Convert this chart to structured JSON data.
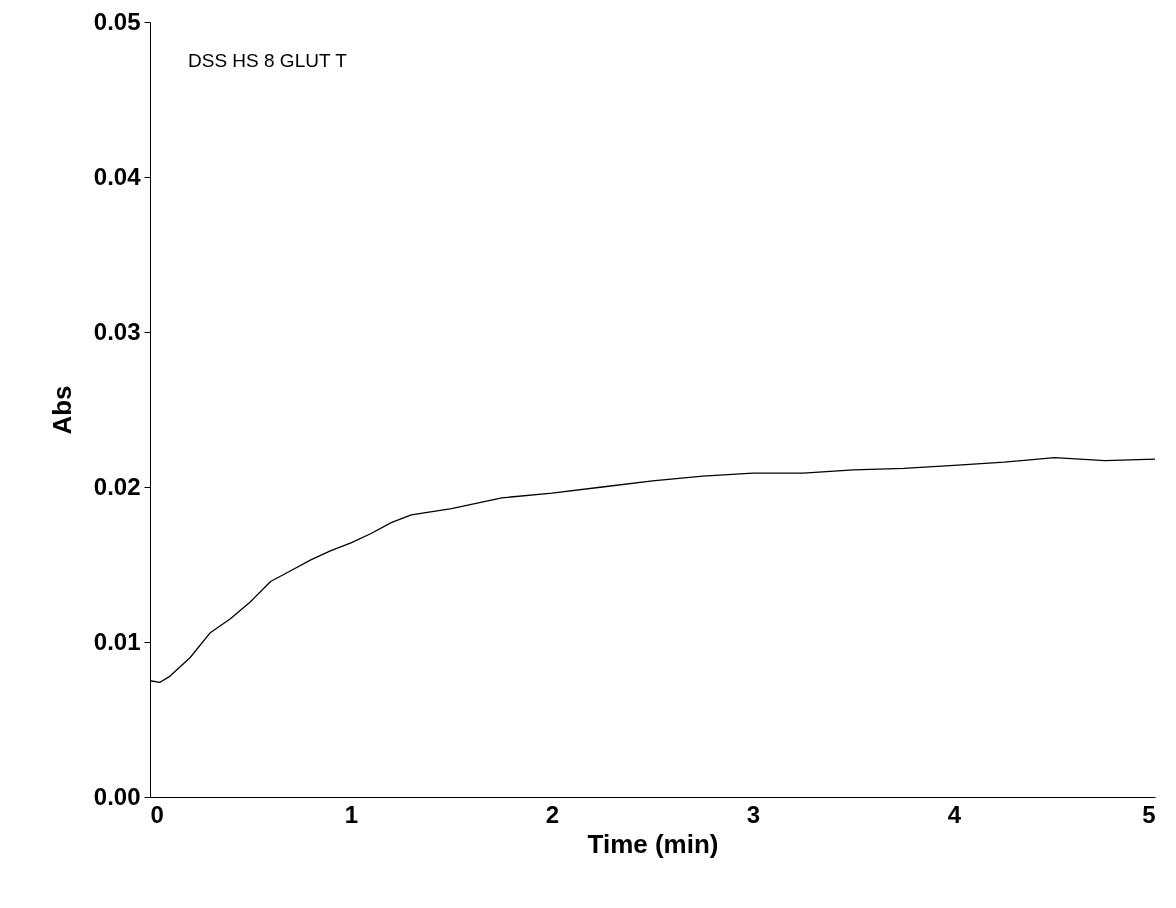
{
  "chart_data": {
    "type": "line",
    "xlabel": "Time (min)",
    "ylabel": "Abs",
    "annotations": [
      "DSS HS 8 GLUT T"
    ],
    "x": [
      0,
      0.05,
      0.1,
      0.2,
      0.3,
      0.4,
      0.5,
      0.6,
      0.7,
      0.8,
      0.9,
      1.0,
      1.1,
      1.2,
      1.3,
      1.5,
      1.75,
      2,
      2.25,
      2.5,
      2.75,
      3,
      3.25,
      3.5,
      3.75,
      4,
      4.25,
      4.5,
      4.75,
      5
    ],
    "values": [
      0.0075,
      0.0074,
      0.0078,
      0.009,
      0.0106,
      0.0115,
      0.0126,
      0.0139,
      0.0146,
      0.0153,
      0.0159,
      0.0164,
      0.017,
      0.0177,
      0.0182,
      0.0186,
      0.0193,
      0.0196,
      0.02,
      0.0204,
      0.0207,
      0.0209,
      0.0209,
      0.0211,
      0.0212,
      0.0214,
      0.0216,
      0.0219,
      0.0217,
      0.0218
    ],
    "color": "#000000",
    "xlim": [
      0,
      5
    ],
    "xticks": [
      0,
      1,
      2,
      3,
      4,
      5
    ],
    "ylim": [
      0,
      0.05
    ],
    "yticks": [
      {
        "value": 0,
        "label": "0.00"
      },
      {
        "value": 0.01,
        "label": "0.01"
      },
      {
        "value": 0.02,
        "label": "0.02"
      },
      {
        "value": 0.03,
        "label": "0.03"
      },
      {
        "value": 0.04,
        "label": "0.04"
      },
      {
        "value": 0.05,
        "label": "0.05"
      }
    ]
  }
}
